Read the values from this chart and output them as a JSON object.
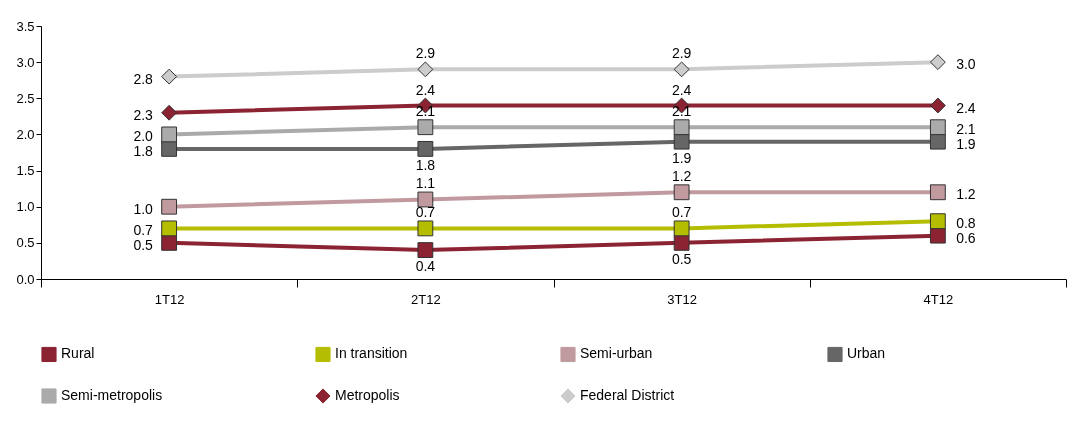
{
  "chart_data": {
    "type": "line",
    "categories": [
      "1T12",
      "2T12",
      "3T12",
      "4T12"
    ],
    "ylim": [
      0,
      3.5
    ],
    "yticks": [
      {
        "value": 0,
        "label": "0.0"
      },
      {
        "value": 0.5,
        "label": "0.5"
      },
      {
        "value": 1,
        "label": "1.0"
      },
      {
        "value": 1.5,
        "label": "1.5"
      },
      {
        "value": 2,
        "label": "2.0"
      },
      {
        "value": 2.5,
        "label": "2.5"
      },
      {
        "value": 3,
        "label": "3.0"
      },
      {
        "value": 3.5,
        "label": "3.5"
      }
    ],
    "grid": false,
    "legend": "bottom",
    "series": [
      {
        "name": "Rural",
        "color": "#8b2332",
        "marker": "square",
        "values": [
          0.5,
          0.4,
          0.5,
          0.6
        ],
        "value_labels": [
          "0.5",
          "0.4",
          "0.5",
          "0.6"
        ]
      },
      {
        "name": "In transition",
        "color": "#b5bd00",
        "marker": "square",
        "values": [
          0.7,
          0.7,
          0.7,
          0.8
        ],
        "value_labels": [
          "0.7",
          "0.7",
          "0.7",
          "0.8"
        ]
      },
      {
        "name": "Semi-urban",
        "color": "#c09a9e",
        "marker": "square",
        "values": [
          1.0,
          1.1,
          1.2,
          1.2
        ],
        "value_labels": [
          "1.0",
          "1.1",
          "1.2",
          "1.2"
        ]
      },
      {
        "name": "Urban",
        "color": "#666666",
        "marker": "square",
        "values": [
          1.8,
          1.8,
          1.9,
          1.9
        ],
        "value_labels": [
          "1.8",
          "1.8",
          "1.9",
          "1.9"
        ]
      },
      {
        "name": "Semi-metropolis",
        "color": "#aaaaaa",
        "marker": "square",
        "values": [
          2.0,
          2.1,
          2.1,
          2.1
        ],
        "value_labels": [
          "2.0",
          "2.1",
          "2.1",
          "2.1"
        ]
      },
      {
        "name": "Metropolis",
        "color": "#8b2332",
        "marker": "diamond",
        "values": [
          2.3,
          2.4,
          2.4,
          2.4
        ],
        "value_labels": [
          "2.3",
          "2.4",
          "2.4",
          "2.4"
        ]
      },
      {
        "name": "Federal District",
        "color": "#cccccc",
        "marker": "diamond",
        "values": [
          2.8,
          2.9,
          2.9,
          3.0
        ],
        "value_labels": [
          "2.8",
          "2.9",
          "2.9",
          "3.0"
        ]
      }
    ]
  }
}
